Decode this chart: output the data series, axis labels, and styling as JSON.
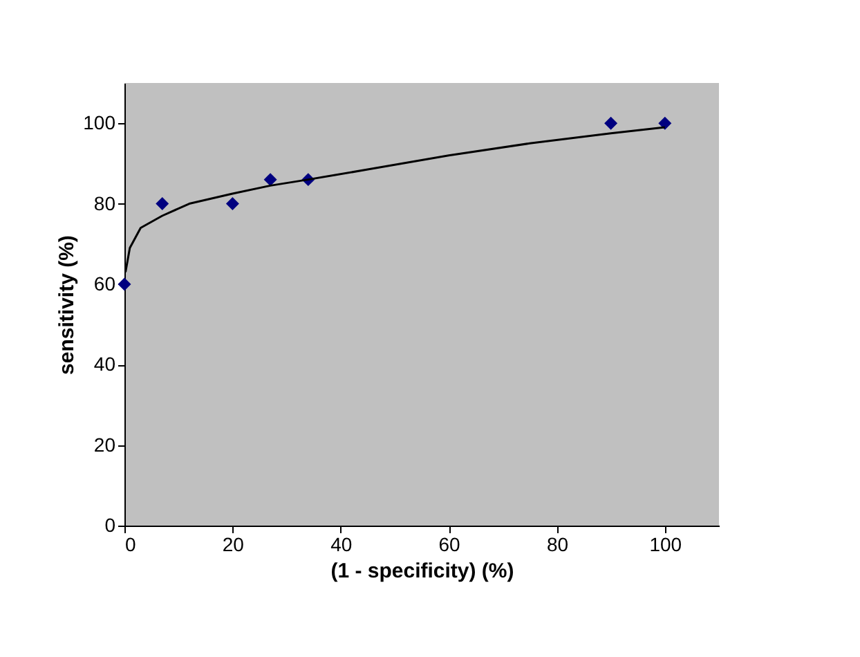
{
  "chart_data": {
    "type": "scatter",
    "xlabel": "(1 - specificity) (%)",
    "ylabel": "sensitivity (%)",
    "xlim": [
      0,
      110
    ],
    "ylim": [
      0,
      110
    ],
    "xticks": [
      0,
      20,
      40,
      60,
      80,
      100
    ],
    "yticks": [
      0,
      20,
      40,
      60,
      80,
      100
    ],
    "grid": false,
    "legend": false,
    "series": [
      {
        "marker": "diamond",
        "color": "#000080",
        "x": [
          0,
          7,
          20,
          27,
          34,
          90,
          100
        ],
        "values": [
          60,
          80,
          80,
          86,
          86,
          100,
          100
        ]
      },
      {
        "type": "line",
        "marker": "none",
        "line_style": "solid",
        "color": "#000000",
        "x": [
          0.2,
          1,
          3,
          7,
          12,
          20,
          27,
          34,
          45,
          60,
          75,
          90,
          100
        ],
        "values": [
          63,
          69,
          74,
          77,
          80,
          82.5,
          84.5,
          86,
          88.5,
          92,
          95,
          97.5,
          99
        ]
      }
    ]
  }
}
